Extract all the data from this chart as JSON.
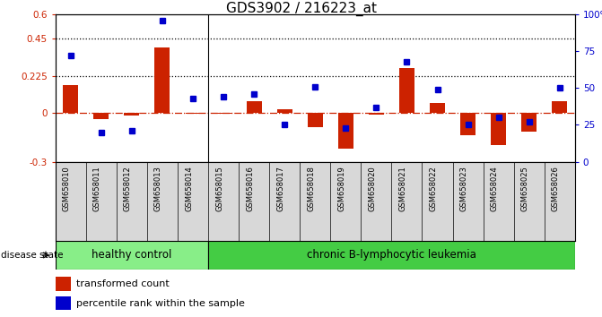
{
  "title": "GDS3902 / 216223_at",
  "samples": [
    "GSM658010",
    "GSM658011",
    "GSM658012",
    "GSM658013",
    "GSM658014",
    "GSM658015",
    "GSM658016",
    "GSM658017",
    "GSM658018",
    "GSM658019",
    "GSM658020",
    "GSM658021",
    "GSM658022",
    "GSM658023",
    "GSM658024",
    "GSM658025",
    "GSM658026"
  ],
  "bar_values": [
    0.17,
    -0.04,
    -0.02,
    0.4,
    -0.005,
    -0.01,
    0.07,
    0.02,
    -0.09,
    -0.22,
    -0.015,
    0.27,
    0.06,
    -0.14,
    -0.2,
    -0.115,
    0.07
  ],
  "dot_values": [
    72,
    20,
    21,
    96,
    43,
    44,
    46,
    25,
    51,
    23,
    37,
    68,
    49,
    25,
    30,
    27,
    50
  ],
  "bar_color": "#cc2200",
  "dot_color": "#0000cc",
  "ylim_left": [
    -0.3,
    0.6
  ],
  "ylim_right": [
    0,
    100
  ],
  "yticks_left": [
    -0.3,
    0.0,
    0.225,
    0.45,
    0.6
  ],
  "ytick_labels_left": [
    "-0.3",
    "0",
    "0.225",
    "0.45",
    "0.6"
  ],
  "yticks_right": [
    0,
    25,
    50,
    75,
    100
  ],
  "ytick_labels_right": [
    "0",
    "25",
    "50",
    "75",
    "100%"
  ],
  "hlines": [
    0.225,
    0.45
  ],
  "healthy_count": 5,
  "group_labels": [
    "healthy control",
    "chronic B-lymphocytic leukemia"
  ],
  "group_colors": [
    "#88ee88",
    "#44cc44"
  ],
  "disease_state_label": "disease state",
  "legend_entries": [
    "transformed count",
    "percentile rank within the sample"
  ],
  "title_fontsize": 11,
  "tick_fontsize": 7.5,
  "xlbl_fontsize": 6,
  "grp_fontsize": 8.5,
  "leg_fontsize": 8,
  "cell_bg": "#d8d8d8"
}
